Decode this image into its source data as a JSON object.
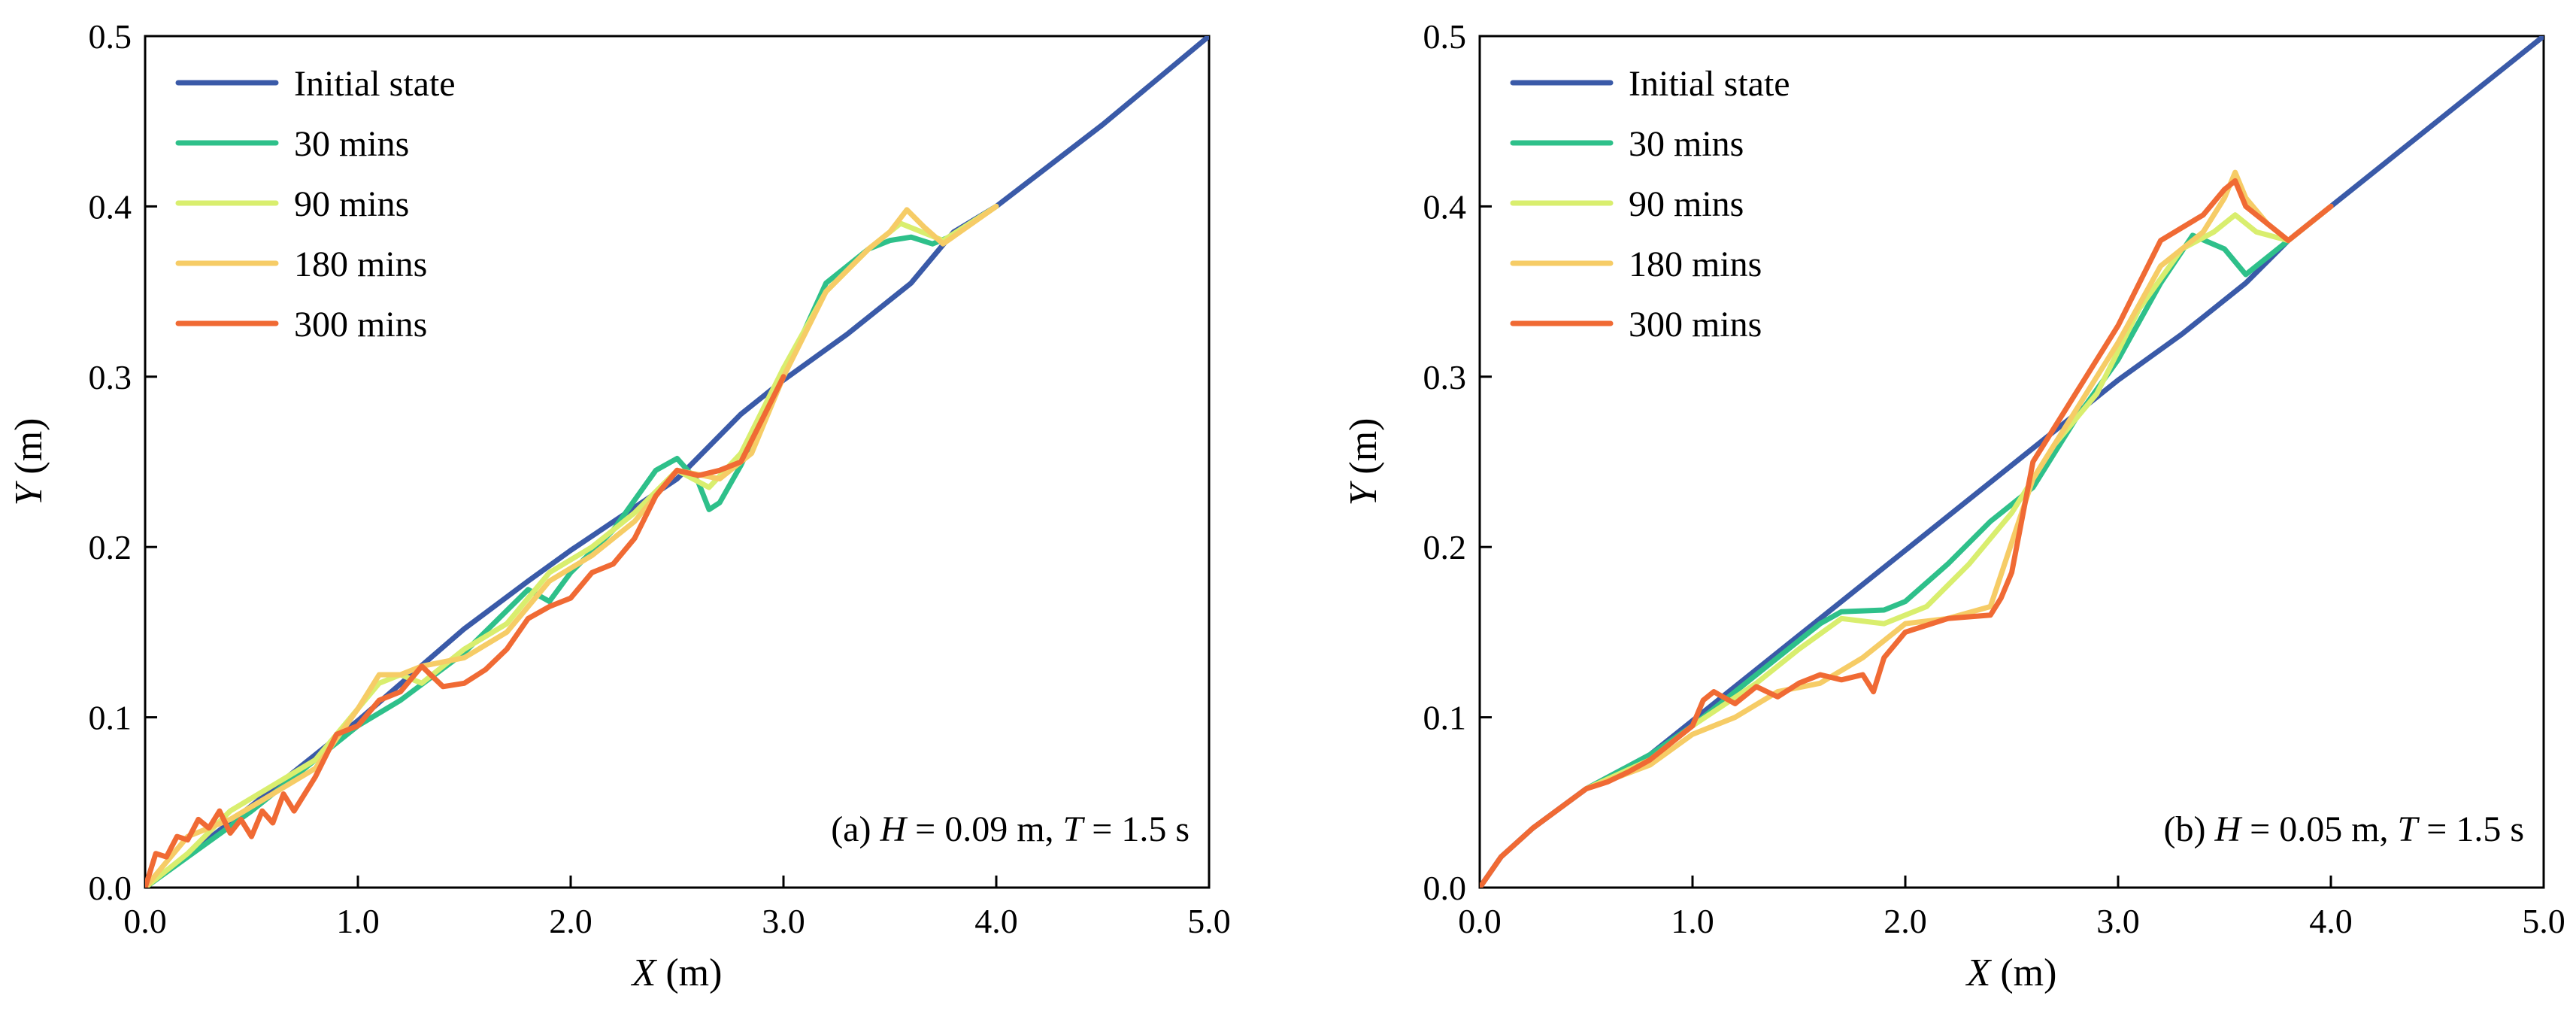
{
  "chart_data": [
    {
      "type": "line",
      "xlabel": "X (m)",
      "ylabel": "Y (m)",
      "xlabel_var": "X",
      "ylabel_var": "Y",
      "axis_unit": "(m)",
      "xlim": [
        0,
        5
      ],
      "ylim": [
        0,
        0.5
      ],
      "x_ticks": [
        0,
        1,
        2,
        3,
        4,
        5
      ],
      "x_tick_labels": [
        "0.0",
        "1.0",
        "2.0",
        "3.0",
        "4.0",
        "5.0"
      ],
      "y_ticks": [
        0,
        0.1,
        0.2,
        0.3,
        0.4,
        0.5
      ],
      "y_tick_labels": [
        "0.0",
        "0.1",
        "0.2",
        "0.3",
        "0.4",
        "0.5"
      ],
      "grid": false,
      "legend_position": "top-left",
      "annotation": {
        "label": "(a)",
        "h_var": "H",
        "h_text": "= 0.09 m,",
        "t_var": "T",
        "t_text": "= 1.5 s",
        "position": "bottom-right"
      },
      "series": [
        {
          "name": "Initial state",
          "color": "#3a5aa8",
          "x": [
            0,
            0.5,
            1.0,
            1.5,
            1.8,
            2.0,
            2.5,
            2.8,
            3.0,
            3.3,
            3.6,
            3.8,
            4.0,
            4.5,
            5.0
          ],
          "y": [
            0,
            0.048,
            0.098,
            0.152,
            0.18,
            0.198,
            0.24,
            0.278,
            0.298,
            0.325,
            0.355,
            0.385,
            0.4,
            0.448,
            0.5
          ]
        },
        {
          "name": "30 mins",
          "color": "#2ec08a",
          "x": [
            0,
            0.5,
            1.0,
            1.2,
            1.5,
            1.8,
            1.9,
            2.0,
            2.2,
            2.4,
            2.5,
            2.6,
            2.65,
            2.7,
            2.8,
            3.0,
            3.2,
            3.4,
            3.5,
            3.6,
            3.7,
            3.8,
            4.0
          ],
          "y": [
            0,
            0.045,
            0.095,
            0.11,
            0.138,
            0.175,
            0.168,
            0.185,
            0.21,
            0.245,
            0.252,
            0.238,
            0.222,
            0.226,
            0.248,
            0.3,
            0.355,
            0.375,
            0.38,
            0.382,
            0.378,
            0.383,
            0.4
          ]
        },
        {
          "name": "90 mins",
          "color": "#d9ee6e",
          "x": [
            0,
            0.2,
            0.4,
            0.6,
            0.8,
            1.0,
            1.1,
            1.2,
            1.3,
            1.5,
            1.7,
            1.9,
            2.1,
            2.3,
            2.5,
            2.65,
            2.8,
            3.0,
            3.2,
            3.4,
            3.55,
            3.65,
            3.75,
            4.0
          ],
          "y": [
            0,
            0.02,
            0.045,
            0.06,
            0.075,
            0.105,
            0.12,
            0.125,
            0.12,
            0.14,
            0.155,
            0.185,
            0.2,
            0.22,
            0.245,
            0.235,
            0.255,
            0.305,
            0.35,
            0.375,
            0.39,
            0.385,
            0.38,
            0.4
          ]
        },
        {
          "name": "180 mins",
          "color": "#f6cc66",
          "x": [
            0,
            0.2,
            0.4,
            0.6,
            0.8,
            1.0,
            1.1,
            1.2,
            1.3,
            1.5,
            1.7,
            1.9,
            2.1,
            2.3,
            2.5,
            2.7,
            2.85,
            3.0,
            3.2,
            3.4,
            3.5,
            3.58,
            3.66,
            3.75,
            4.0
          ],
          "y": [
            0,
            0.03,
            0.04,
            0.055,
            0.07,
            0.105,
            0.125,
            0.125,
            0.13,
            0.135,
            0.15,
            0.18,
            0.195,
            0.215,
            0.245,
            0.24,
            0.255,
            0.3,
            0.35,
            0.375,
            0.385,
            0.398,
            0.388,
            0.378,
            0.4
          ]
        },
        {
          "name": "300 mins",
          "color": "#f06a34",
          "x": [
            0,
            0.05,
            0.1,
            0.15,
            0.2,
            0.25,
            0.3,
            0.35,
            0.4,
            0.45,
            0.5,
            0.55,
            0.6,
            0.65,
            0.7,
            0.8,
            0.9,
            1.0,
            1.1,
            1.2,
            1.3,
            1.4,
            1.5,
            1.6,
            1.7,
            1.8,
            1.9,
            2.0,
            2.1,
            2.2,
            2.3,
            2.4,
            2.5,
            2.6,
            2.7,
            2.8,
            2.9,
            3.0
          ],
          "y": [
            0,
            0.02,
            0.018,
            0.03,
            0.028,
            0.04,
            0.035,
            0.045,
            0.032,
            0.04,
            0.03,
            0.045,
            0.038,
            0.055,
            0.045,
            0.065,
            0.09,
            0.095,
            0.11,
            0.115,
            0.13,
            0.118,
            0.12,
            0.128,
            0.14,
            0.158,
            0.165,
            0.17,
            0.185,
            0.19,
            0.205,
            0.23,
            0.245,
            0.242,
            0.245,
            0.25,
            0.275,
            0.3
          ]
        }
      ]
    },
    {
      "type": "line",
      "xlabel": "X (m)",
      "ylabel": "Y (m)",
      "xlabel_var": "X",
      "ylabel_var": "Y",
      "axis_unit": "(m)",
      "xlim": [
        0,
        5
      ],
      "ylim": [
        0,
        0.5
      ],
      "x_ticks": [
        0,
        1,
        2,
        3,
        4,
        5
      ],
      "x_tick_labels": [
        "0.0",
        "1.0",
        "2.0",
        "3.0",
        "4.0",
        "5.0"
      ],
      "y_ticks": [
        0,
        0.1,
        0.2,
        0.3,
        0.4,
        0.5
      ],
      "y_tick_labels": [
        "0.0",
        "0.1",
        "0.2",
        "0.3",
        "0.4",
        "0.5"
      ],
      "grid": false,
      "legend_position": "top-left",
      "annotation": {
        "label": "(b)",
        "h_var": "H",
        "h_text": "= 0.05 m,",
        "t_var": "T",
        "t_text": "= 1.5 s",
        "position": "bottom-right"
      },
      "series": [
        {
          "name": "Initial state",
          "color": "#3a5aa8",
          "x": [
            0,
            0.1,
            0.25,
            0.5,
            0.8,
            1.0,
            1.5,
            2.0,
            2.5,
            3.0,
            3.3,
            3.6,
            3.8,
            4.0,
            4.5,
            5.0
          ],
          "y": [
            0,
            0.018,
            0.035,
            0.058,
            0.078,
            0.098,
            0.148,
            0.198,
            0.248,
            0.298,
            0.325,
            0.355,
            0.38,
            0.4,
            0.45,
            0.5
          ]
        },
        {
          "name": "30  mins",
          "color": "#2ec08a",
          "x": [
            0.5,
            0.8,
            1.0,
            1.3,
            1.6,
            1.7,
            1.9,
            2.0,
            2.2,
            2.4,
            2.5,
            2.6,
            2.7,
            2.8,
            3.0,
            3.2,
            3.35,
            3.5,
            3.6,
            3.8,
            4.0
          ],
          "y": [
            0.058,
            0.078,
            0.095,
            0.125,
            0.155,
            0.162,
            0.163,
            0.168,
            0.19,
            0.215,
            0.225,
            0.235,
            0.255,
            0.275,
            0.31,
            0.355,
            0.383,
            0.375,
            0.36,
            0.38,
            0.4
          ]
        },
        {
          "name": "90  mins",
          "color": "#d9ee6e",
          "x": [
            0.5,
            0.8,
            1.0,
            1.3,
            1.5,
            1.7,
            1.9,
            2.1,
            2.3,
            2.5,
            2.7,
            2.9,
            3.1,
            3.3,
            3.45,
            3.55,
            3.65,
            3.8,
            4.0
          ],
          "y": [
            0.058,
            0.075,
            0.095,
            0.12,
            0.14,
            0.158,
            0.155,
            0.165,
            0.19,
            0.22,
            0.26,
            0.29,
            0.34,
            0.375,
            0.385,
            0.395,
            0.385,
            0.38,
            0.4
          ]
        },
        {
          "name": "180  mins",
          "color": "#f6cc66",
          "x": [
            0.5,
            0.8,
            1.0,
            1.2,
            1.4,
            1.6,
            1.8,
            2.0,
            2.2,
            2.4,
            2.6,
            2.8,
            3.0,
            3.2,
            3.4,
            3.5,
            3.55,
            3.6,
            3.7,
            3.8,
            4.0
          ],
          "y": [
            0.058,
            0.072,
            0.09,
            0.1,
            0.115,
            0.12,
            0.135,
            0.155,
            0.158,
            0.165,
            0.24,
            0.28,
            0.32,
            0.365,
            0.385,
            0.405,
            0.42,
            0.405,
            0.39,
            0.38,
            0.4
          ]
        },
        {
          "name": "300  mins",
          "color": "#f06a34",
          "x": [
            0,
            0.1,
            0.25,
            0.5,
            0.6,
            0.7,
            0.8,
            0.9,
            1.0,
            1.05,
            1.1,
            1.2,
            1.3,
            1.4,
            1.5,
            1.6,
            1.7,
            1.8,
            1.85,
            1.9,
            2.0,
            2.2,
            2.4,
            2.45,
            2.5,
            2.6,
            2.8,
            3.0,
            3.2,
            3.4,
            3.5,
            3.55,
            3.6,
            3.7,
            3.8,
            4.0
          ],
          "y": [
            0,
            0.018,
            0.035,
            0.058,
            0.062,
            0.068,
            0.075,
            0.085,
            0.095,
            0.11,
            0.115,
            0.108,
            0.118,
            0.112,
            0.12,
            0.125,
            0.122,
            0.125,
            0.115,
            0.135,
            0.15,
            0.158,
            0.16,
            0.17,
            0.185,
            0.25,
            0.29,
            0.33,
            0.38,
            0.395,
            0.41,
            0.415,
            0.4,
            0.39,
            0.38,
            0.4
          ]
        }
      ]
    }
  ]
}
